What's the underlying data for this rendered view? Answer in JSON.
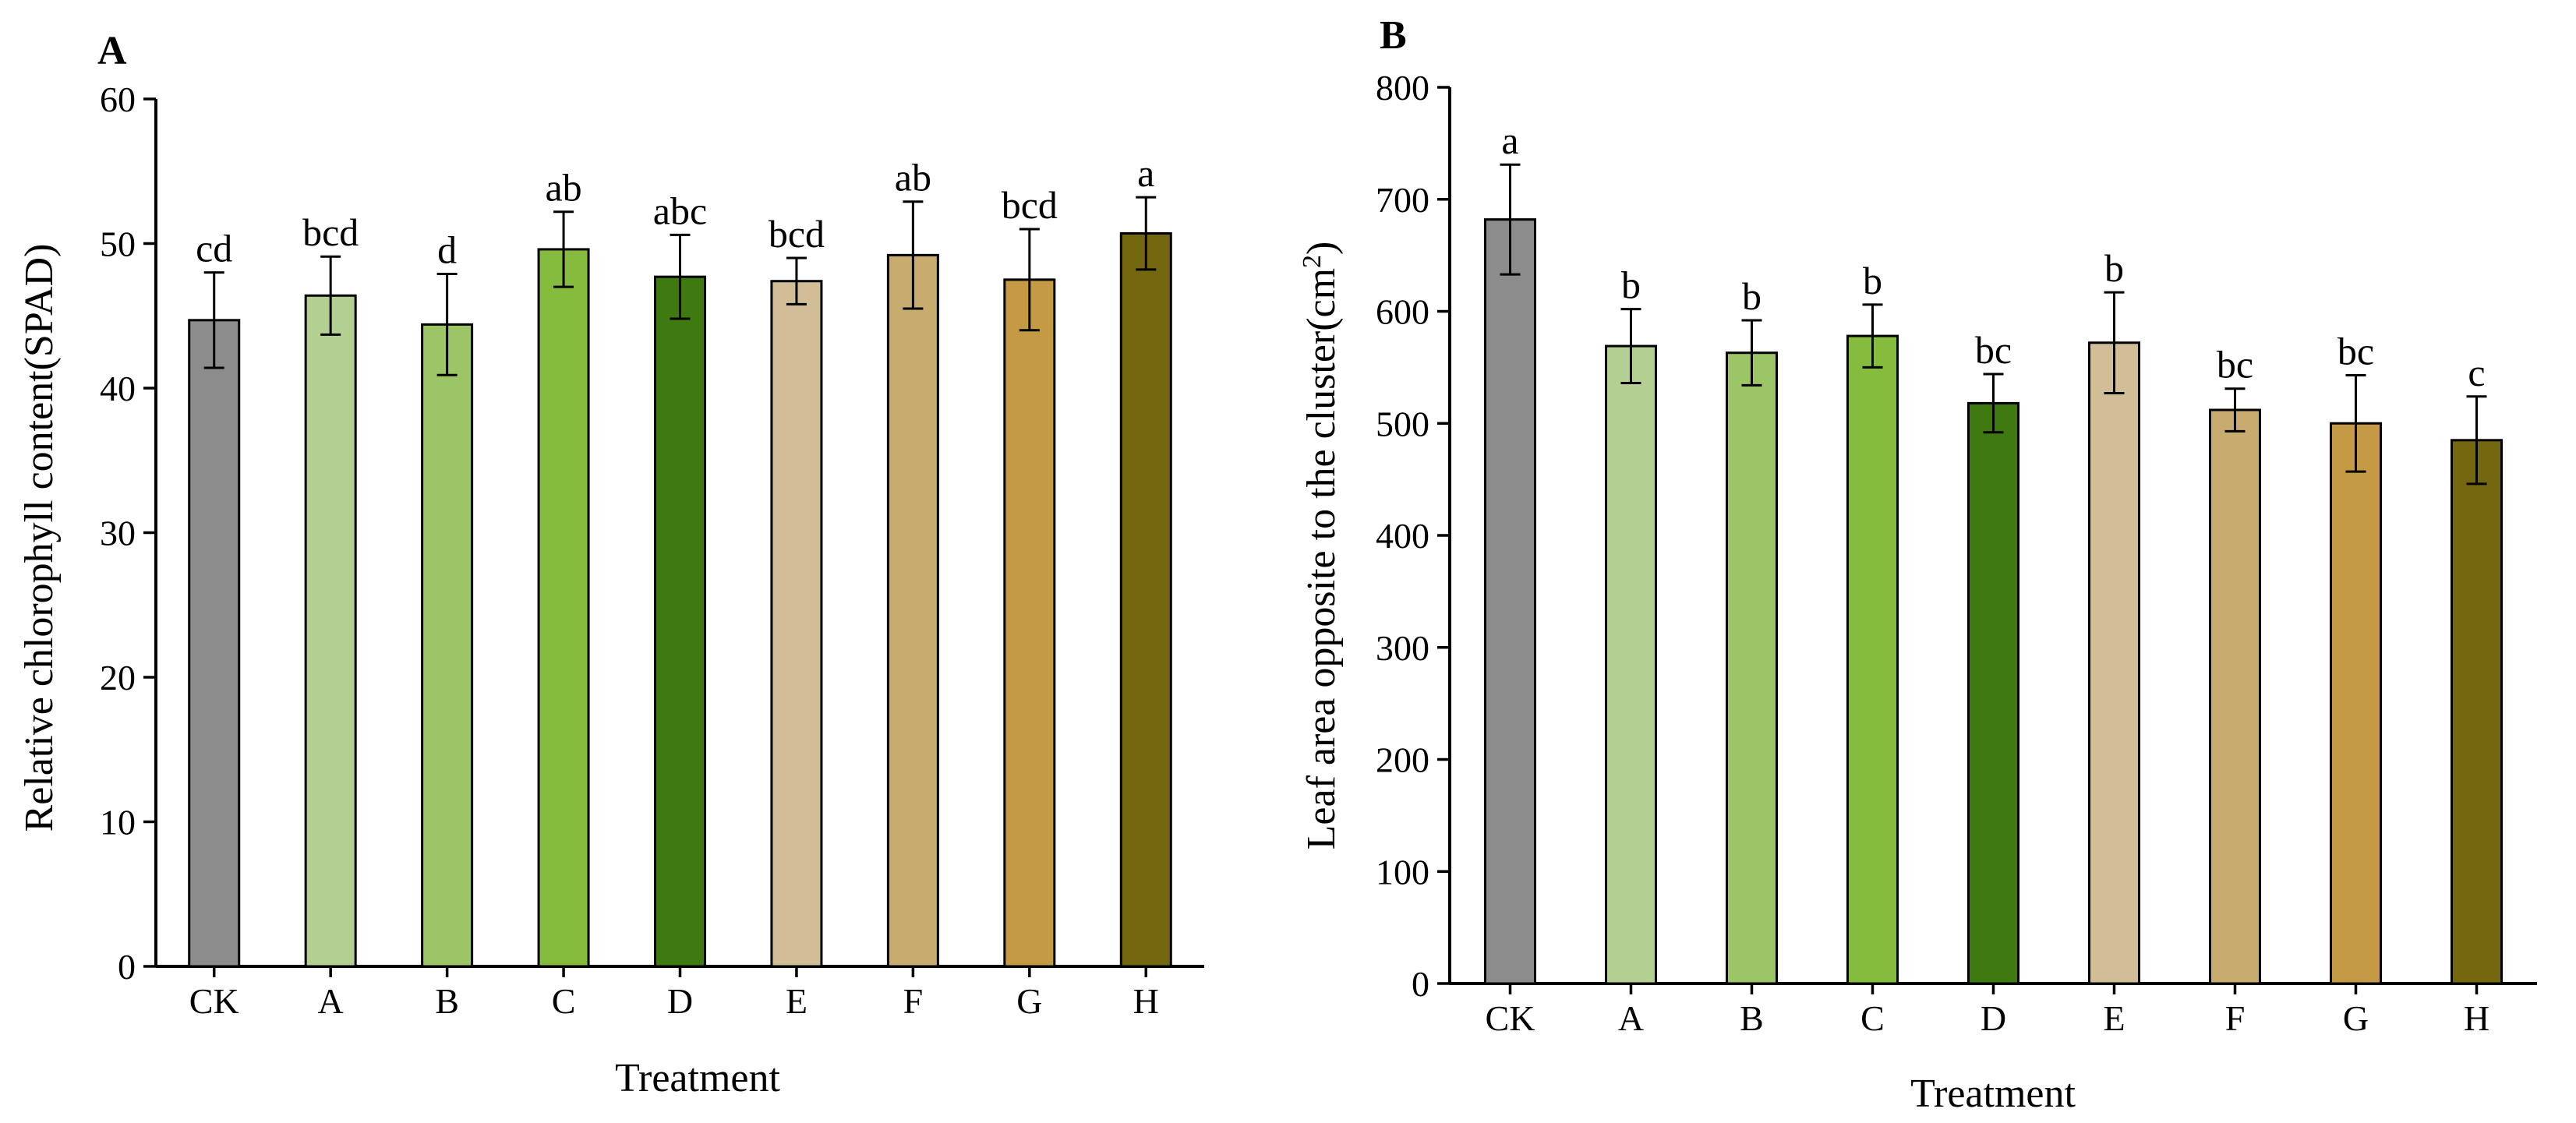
{
  "chart_data": [
    {
      "panel": "A",
      "type": "bar",
      "title": "",
      "xlabel": "Treatment",
      "ylabel": "Relative chlorophyll content(SPAD)",
      "categories": [
        "CK",
        "A",
        "B",
        "C",
        "D",
        "E",
        "F",
        "G",
        "H"
      ],
      "values": [
        44.7,
        46.4,
        44.4,
        49.6,
        47.7,
        47.4,
        49.2,
        47.5,
        50.7
      ],
      "errors": [
        3.3,
        2.7,
        3.5,
        2.6,
        2.9,
        1.6,
        3.7,
        3.5,
        2.5
      ],
      "significance": [
        "cd",
        "bcd",
        "d",
        "ab",
        "abc",
        "bcd",
        "ab",
        "bcd",
        "a"
      ],
      "bar_colors": [
        "#8c8c8c",
        "#b3cf92",
        "#9cc566",
        "#85bc3e",
        "#3e7a10",
        "#d1be96",
        "#c8ab6e",
        "#c49a44",
        "#73680f"
      ],
      "ylim": [
        0,
        60
      ],
      "yticks": [
        0,
        10,
        20,
        30,
        40,
        50,
        60
      ],
      "grid": false
    },
    {
      "panel": "B",
      "type": "bar",
      "title": "",
      "xlabel": "Treatment",
      "ylabel": "Leaf area opposite to the cluster(cm",
      "ylabel_superscript": "2",
      "ylabel_suffix": ")",
      "categories": [
        "CK",
        "A",
        "B",
        "C",
        "D",
        "E",
        "F",
        "G",
        "H"
      ],
      "values": [
        682,
        569,
        563,
        578,
        518,
        572,
        512,
        500,
        485
      ],
      "errors": [
        49,
        33,
        29,
        28,
        26,
        45,
        19,
        43,
        39
      ],
      "significance": [
        "a",
        "b",
        "b",
        "b",
        "bc",
        "b",
        "bc",
        "bc",
        "c"
      ],
      "bar_colors": [
        "#8c8c8c",
        "#b3cf92",
        "#9cc566",
        "#85bc3e",
        "#3e7a10",
        "#d1be96",
        "#c8ab6e",
        "#c49a44",
        "#73680f"
      ],
      "ylim": [
        0,
        800
      ],
      "yticks": [
        0,
        100,
        200,
        300,
        400,
        500,
        600,
        700,
        800
      ],
      "grid": false
    }
  ]
}
